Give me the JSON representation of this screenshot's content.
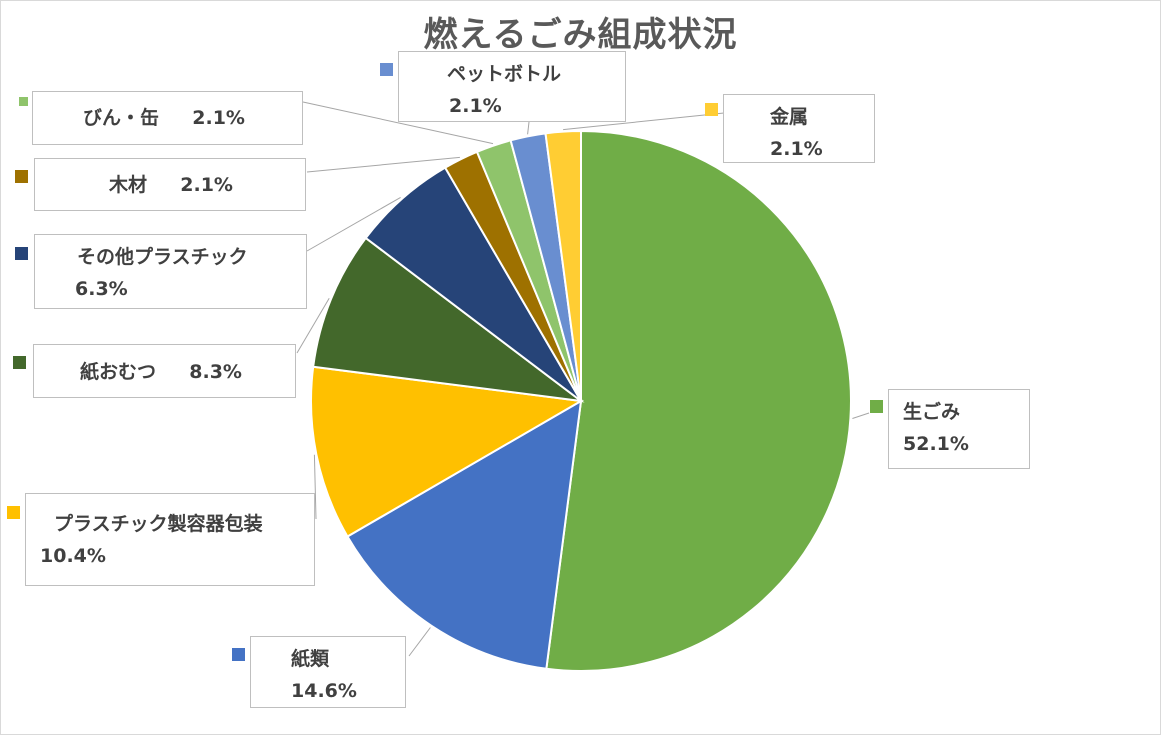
{
  "chart_data": {
    "type": "pie",
    "title": "燃えるごみ組成状況",
    "start_angle_deg": 0,
    "direction": "clockwise",
    "slices": [
      {
        "name": "生ごみ",
        "value": 52.1,
        "label": "52.1%",
        "color": "#70AD47"
      },
      {
        "name": "紙類",
        "value": 14.6,
        "label": "14.6%",
        "color": "#4472C4"
      },
      {
        "name": "プラスチック製容器包装",
        "value": 10.4,
        "label": "10.4%",
        "color": "#FFC000"
      },
      {
        "name": "紙おむつ",
        "value": 8.3,
        "label": "8.3%",
        "color": "#43682B"
      },
      {
        "name": "その他プラスチック",
        "value": 6.3,
        "label": "6.3%",
        "color": "#264478"
      },
      {
        "name": "木材",
        "value": 2.1,
        "label": "2.1%",
        "color": "#9E7100"
      },
      {
        "name": "びん・缶",
        "value": 2.1,
        "label": "2.1%",
        "color": "#8FC46B"
      },
      {
        "name": "ペットボトル",
        "value": 2.1,
        "label": "2.1%",
        "color": "#698ED0"
      },
      {
        "name": "金属",
        "value": 2.1,
        "label": "2.1%",
        "color": "#FFCD33"
      }
    ]
  }
}
